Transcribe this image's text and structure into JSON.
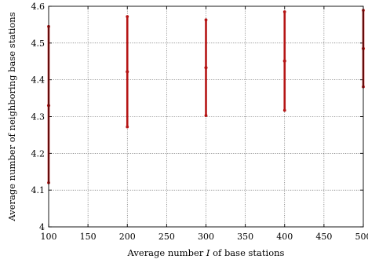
{
  "chart_data": {
    "type": "errorbar",
    "xlabel_prefix": "Average number ",
    "xlabel_var": "I",
    "xlabel_suffix": " of base stations",
    "ylabel": "Average number of neighboring base stations",
    "xlim": [
      100,
      500
    ],
    "ylim": [
      4.0,
      4.6
    ],
    "x_ticks": [
      100,
      150,
      200,
      250,
      300,
      350,
      400,
      450,
      500
    ],
    "x_tick_labels": [
      "100",
      "150",
      "200",
      "250",
      "300",
      "350",
      "400",
      "450",
      "500"
    ],
    "y_ticks": [
      4.0,
      4.1,
      4.2,
      4.3,
      4.4,
      4.5,
      4.6
    ],
    "y_tick_labels": [
      "4",
      "4.1",
      "4.2",
      "4.3",
      "4.4",
      "4.5",
      "4.6"
    ],
    "grid": true,
    "color": "#b51515",
    "points": [
      {
        "x": 100,
        "mean": 4.33,
        "low": 4.12,
        "high": 4.545
      },
      {
        "x": 200,
        "mean": 4.422,
        "low": 4.272,
        "high": 4.572
      },
      {
        "x": 300,
        "mean": 4.433,
        "low": 4.303,
        "high": 4.563
      },
      {
        "x": 400,
        "mean": 4.451,
        "low": 4.317,
        "high": 4.585
      },
      {
        "x": 500,
        "mean": 4.485,
        "low": 4.381,
        "high": 4.589
      }
    ]
  }
}
